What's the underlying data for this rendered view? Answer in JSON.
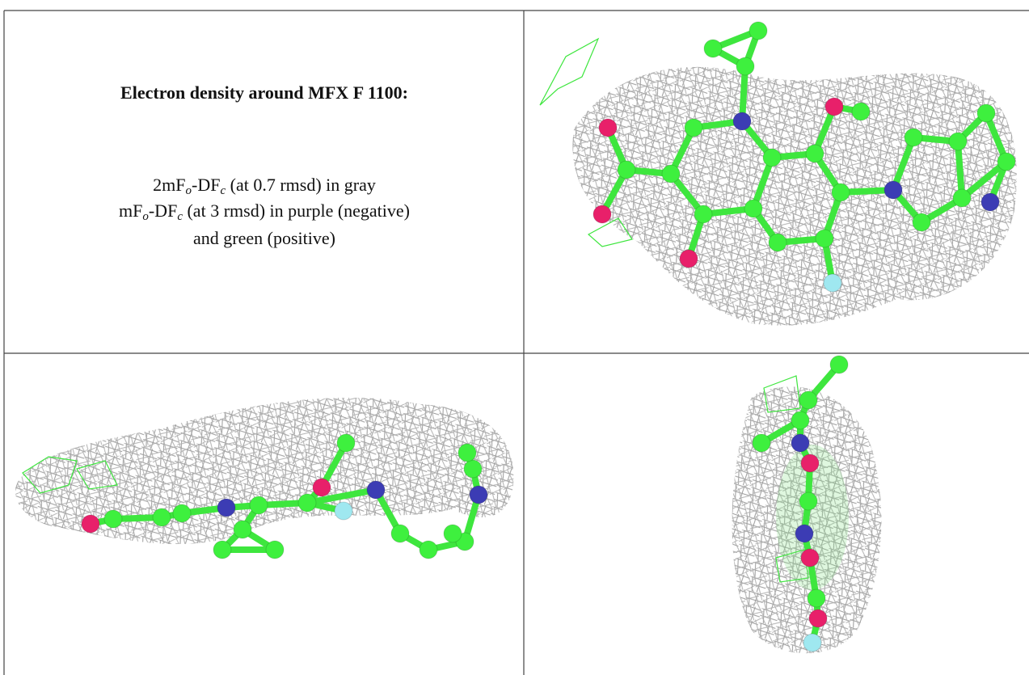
{
  "panel": {
    "title": "Electron density around MFX F 1100:",
    "lines": [
      [
        "2mF",
        "o",
        "-DF",
        "c",
        " (at 0.7 rmsd) in gray"
      ],
      [
        "mF",
        "o",
        "-DF",
        "c",
        " (at 3 rmsd) in purple (negative)"
      ],
      [
        "and green (positive)"
      ]
    ]
  }
}
